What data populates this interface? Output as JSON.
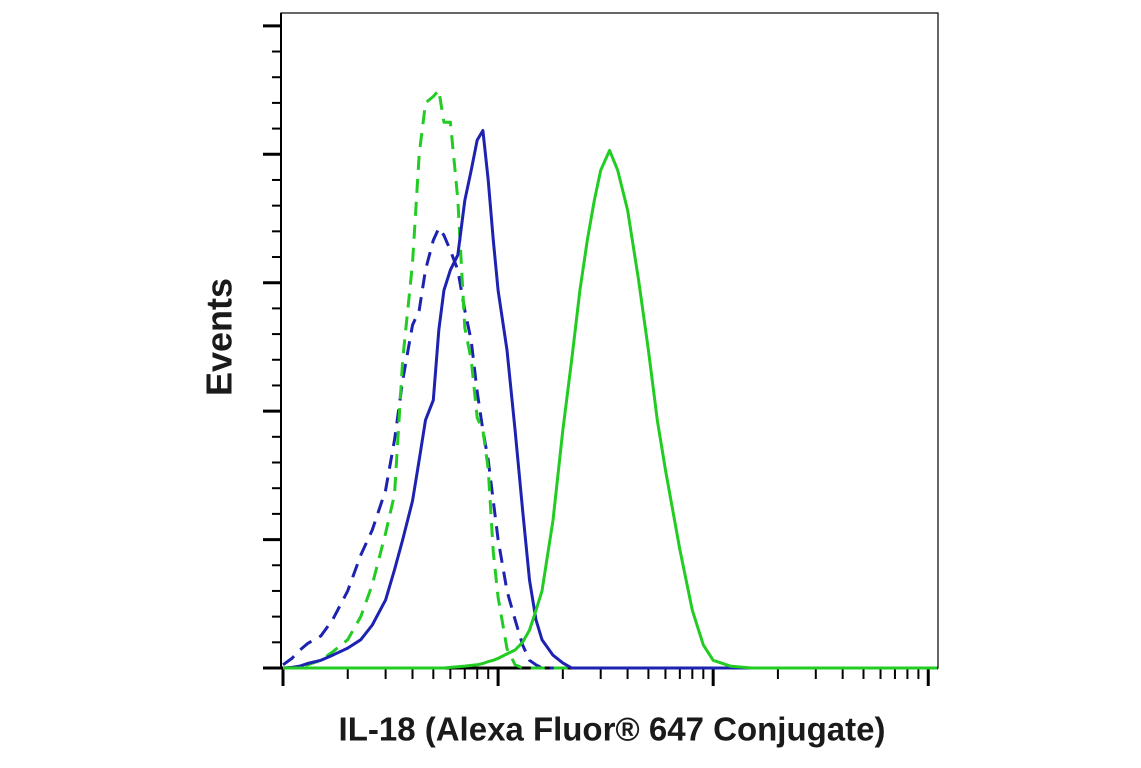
{
  "chart_data": {
    "type": "line",
    "y_label": "Events",
    "x_label": "IL-18 (Alexa Fluor® 647 Conjugate)",
    "log_x": true,
    "tick_labels": false,
    "xlim": [
      100,
      111000
    ],
    "xticks": [
      100,
      1000,
      10000,
      100000
    ],
    "xminorticks": [
      200,
      300,
      400,
      500,
      600,
      700,
      800,
      900,
      2000,
      3000,
      4000,
      5000,
      6000,
      7000,
      8000,
      9000,
      20000,
      30000,
      40000,
      50000,
      60000,
      70000,
      80000,
      90000
    ],
    "ylim": [
      0,
      102
    ],
    "yticks": [
      0,
      20,
      40,
      60,
      80,
      100
    ],
    "yminorticks": [
      4,
      8,
      12,
      16,
      24,
      28,
      32,
      36,
      44,
      48,
      52,
      56,
      64,
      68,
      72,
      76,
      84,
      88,
      92,
      96
    ],
    "x": [
      100,
      110,
      120,
      130,
      150,
      170,
      200,
      230,
      260,
      300,
      330,
      360,
      400,
      430,
      460,
      500,
      530,
      560,
      600,
      650,
      700,
      750,
      800,
      850,
      900,
      950,
      1000,
      1100,
      1200,
      1300,
      1400,
      1500,
      1600,
      1800,
      2000,
      2200,
      2400,
      2600,
      2800,
      3000,
      3300,
      3600,
      4000,
      4500,
      5000,
      5500,
      6000,
      7000,
      8000,
      9000,
      10000,
      12000,
      15000,
      20000,
      30000,
      50000,
      100000,
      110000
    ],
    "series": [
      {
        "color": "#1d22b0",
        "style": "dashed",
        "values": [
          0.5,
          1.5,
          2.8,
          3.8,
          5,
          7.5,
          12,
          17.6,
          21.5,
          27.7,
          35.5,
          44.8,
          53.4,
          55.7,
          62,
          66.6,
          68.5,
          67.4,
          65,
          62,
          55.7,
          51,
          43,
          37,
          32.4,
          26,
          20,
          12,
          7.5,
          3.6,
          1.2,
          0.5,
          0,
          0,
          0,
          0,
          0,
          0,
          0,
          0,
          0,
          0,
          0,
          0,
          0,
          0,
          0,
          0,
          0,
          0,
          0,
          0,
          0,
          0,
          0,
          0,
          0,
          0
        ]
      },
      {
        "color": "#22cc22",
        "style": "dashed",
        "values": [
          0,
          0,
          0,
          0.5,
          1.2,
          2.5,
          4.4,
          8,
          13,
          21,
          27,
          48,
          63,
          80,
          88,
          89,
          90,
          85,
          85,
          73,
          53,
          48,
          39,
          37,
          31,
          18,
          11,
          3,
          0.5,
          0,
          0,
          0,
          0,
          0,
          0,
          0,
          0,
          0,
          0,
          0,
          0,
          0,
          0,
          0,
          0,
          0,
          0,
          0,
          0,
          0,
          0,
          0,
          0,
          0,
          0,
          0,
          0,
          0
        ]
      },
      {
        "color": "#1d22b0",
        "style": "solid",
        "values": [
          0,
          0.1,
          0.3,
          0.7,
          1.2,
          2,
          3.1,
          4.4,
          6.7,
          10.6,
          15.3,
          20,
          26,
          32.4,
          38.6,
          41.7,
          52.6,
          58.8,
          62,
          64.3,
          72.8,
          77.5,
          82.2,
          83.7,
          76,
          66.6,
          58.8,
          49.5,
          37,
          24.6,
          13.7,
          7.5,
          4.4,
          2,
          0.8,
          0,
          0,
          0,
          0,
          0,
          0,
          0,
          0,
          0,
          0,
          0,
          0,
          0,
          0,
          0,
          0,
          0,
          0,
          0,
          0,
          0,
          0,
          0
        ]
      },
      {
        "color": "#22cc22",
        "style": "solid",
        "values": [
          0,
          0,
          0,
          0,
          0,
          0,
          0,
          0,
          0,
          0,
          0,
          0,
          0,
          0,
          0,
          0,
          0,
          0,
          0.1,
          0.2,
          0.3,
          0.4,
          0.5,
          0.7,
          1,
          1.2,
          1.5,
          2.2,
          2.8,
          4,
          5.9,
          9,
          12,
          23,
          37,
          48,
          58.8,
          66.6,
          72.8,
          77.5,
          80.6,
          77.5,
          71.3,
          60.4,
          49.5,
          38.6,
          30.8,
          18.4,
          9,
          3.6,
          1.2,
          0.3,
          0,
          0,
          0,
          0,
          0,
          0
        ]
      }
    ]
  }
}
